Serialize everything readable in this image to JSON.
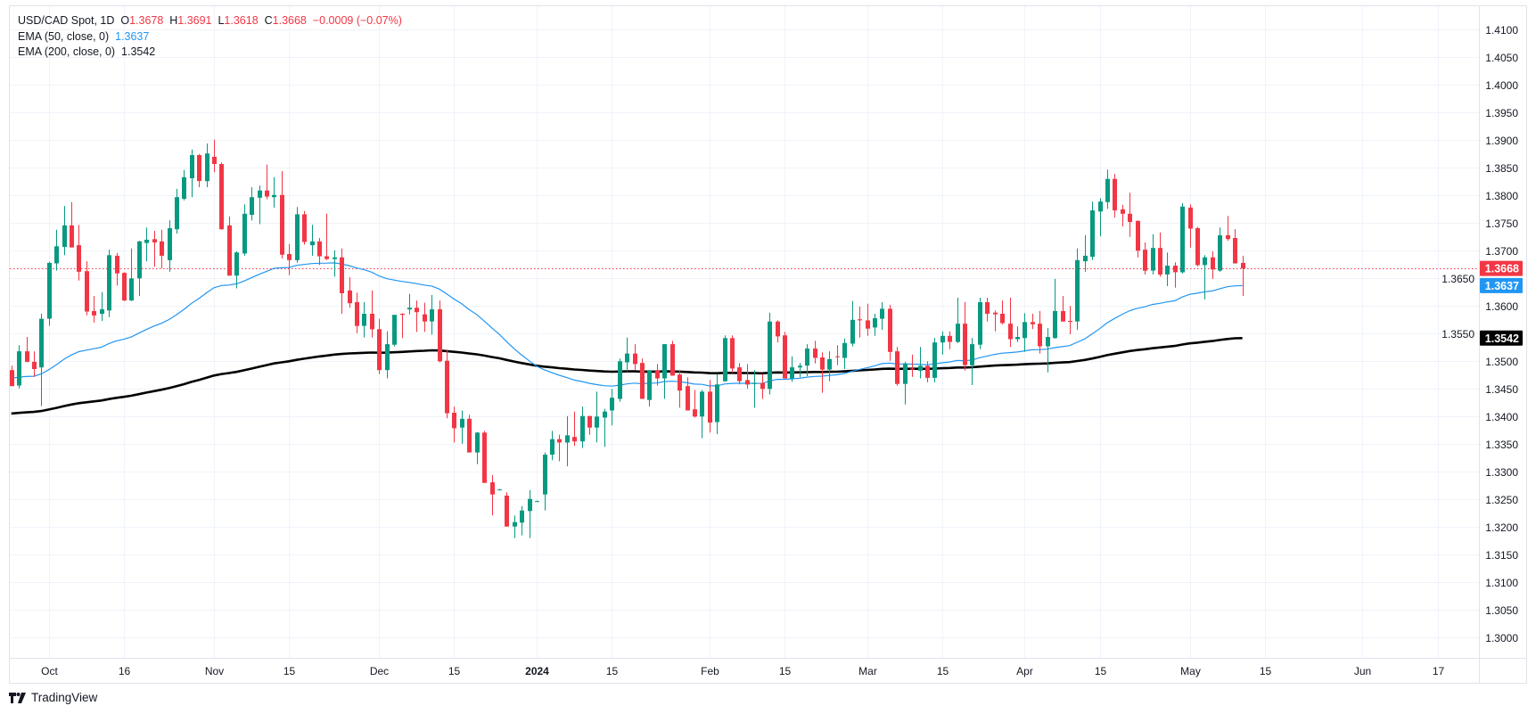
{
  "legend": {
    "symbol": "USD/CAD Spot, 1D",
    "o_label": "O",
    "o_value": "1.3678",
    "h_label": "H",
    "h_value": "1.3691",
    "l_label": "L",
    "l_value": "1.3618",
    "c_label": "C",
    "c_value": "1.3668",
    "change": "−0.0009 (−0.07%)",
    "ema50_label": "EMA (50, close, 0)",
    "ema50_value": "1.3637",
    "ema200_label": "EMA (200, close, 0)",
    "ema200_value": "1.3542"
  },
  "branding": {
    "logo_text": "TradingView"
  },
  "colors": {
    "up": "#089981",
    "down": "#f23645",
    "ema50": "#2196f3",
    "ema200": "#000000",
    "grid": "#f0f3fa"
  },
  "chart_data": {
    "type": "candlestick",
    "title": "USD/CAD Spot, 1D",
    "ylim": [
      1.2975,
      1.4125
    ],
    "y_ticks": [
      "1.3000",
      "1.3050",
      "1.3100",
      "1.3150",
      "1.3200",
      "1.3250",
      "1.3300",
      "1.3350",
      "1.3400",
      "1.3450",
      "1.3500",
      "1.3550",
      "1.3600",
      "1.3650",
      "1.3700",
      "1.3750",
      "1.3800",
      "1.3850",
      "1.3900",
      "1.3950",
      "1.4000",
      "1.4050",
      "1.4100"
    ],
    "x_ticks": [
      {
        "label": "Oct",
        "bar": 5
      },
      {
        "label": "16",
        "bar": 15
      },
      {
        "label": "Nov",
        "bar": 27
      },
      {
        "label": "15",
        "bar": 37
      },
      {
        "label": "Dec",
        "bar": 49
      },
      {
        "label": "15",
        "bar": 59
      },
      {
        "label": "2024",
        "bar": 70,
        "bold": true
      },
      {
        "label": "15",
        "bar": 80
      },
      {
        "label": "Feb",
        "bar": 93
      },
      {
        "label": "15",
        "bar": 103
      },
      {
        "label": "Mar",
        "bar": 114
      },
      {
        "label": "15",
        "bar": 124
      },
      {
        "label": "Apr",
        "bar": 135
      },
      {
        "label": "15",
        "bar": 145
      },
      {
        "label": "May",
        "bar": 157
      },
      {
        "label": "15",
        "bar": 167
      },
      {
        "label": "Jun",
        "bar": 180
      },
      {
        "label": "17",
        "bar": 190
      }
    ],
    "last_price": {
      "value": 1.3668,
      "label": "1.3668"
    },
    "ema50": {
      "start": 1.347,
      "last": 1.3637,
      "label": "1.3637"
    },
    "ema200": {
      "start": 1.3405,
      "last": 1.3542,
      "label": "1.3542"
    },
    "ohlc_fields": [
      "open",
      "high",
      "low",
      "close"
    ],
    "candles": [
      [
        1.3484,
        1.3492,
        1.3455,
        1.3455
      ],
      [
        1.3456,
        1.3529,
        1.3451,
        1.3518
      ],
      [
        1.3518,
        1.3544,
        1.3498,
        1.3499
      ],
      [
        1.3499,
        1.3518,
        1.3472,
        1.3486
      ],
      [
        1.3489,
        1.3586,
        1.3419,
        1.3577
      ],
      [
        1.3577,
        1.368,
        1.3564,
        1.3678
      ],
      [
        1.3677,
        1.3738,
        1.3664,
        1.3708
      ],
      [
        1.3707,
        1.3781,
        1.3692,
        1.3746
      ],
      [
        1.3746,
        1.3788,
        1.3706,
        1.3706
      ],
      [
        1.371,
        1.3747,
        1.3646,
        1.3662
      ],
      [
        1.3663,
        1.3681,
        1.3583,
        1.359
      ],
      [
        1.3591,
        1.3618,
        1.357,
        1.3583
      ],
      [
        1.3586,
        1.3625,
        1.3573,
        1.3594
      ],
      [
        1.3592,
        1.3702,
        1.358,
        1.3692
      ],
      [
        1.3691,
        1.3696,
        1.3637,
        1.3659
      ],
      [
        1.366,
        1.3661,
        1.3609,
        1.361
      ],
      [
        1.361,
        1.3704,
        1.3609,
        1.365
      ],
      [
        1.365,
        1.3718,
        1.3618,
        1.3717
      ],
      [
        1.3714,
        1.3742,
        1.3681,
        1.372
      ],
      [
        1.3721,
        1.3736,
        1.3671,
        1.3715
      ],
      [
        1.3717,
        1.3738,
        1.3668,
        1.3691
      ],
      [
        1.3683,
        1.3755,
        1.3662,
        1.3741
      ],
      [
        1.3739,
        1.3812,
        1.3731,
        1.3797
      ],
      [
        1.3794,
        1.3846,
        1.3791,
        1.3833
      ],
      [
        1.3831,
        1.3883,
        1.3797,
        1.3873
      ],
      [
        1.3873,
        1.3875,
        1.3815,
        1.3826
      ],
      [
        1.3826,
        1.3894,
        1.3815,
        1.3876
      ],
      [
        1.387,
        1.3901,
        1.3842,
        1.3857
      ],
      [
        1.3857,
        1.386,
        1.3738,
        1.3739
      ],
      [
        1.3746,
        1.3762,
        1.3655,
        1.3655
      ],
      [
        1.3655,
        1.3699,
        1.3632,
        1.3697
      ],
      [
        1.3695,
        1.3784,
        1.3691,
        1.3767
      ],
      [
        1.3765,
        1.3815,
        1.3755,
        1.3797
      ],
      [
        1.3796,
        1.3818,
        1.3748,
        1.3809
      ],
      [
        1.3809,
        1.3856,
        1.3793,
        1.3798
      ],
      [
        1.3797,
        1.3833,
        1.3778,
        1.3801
      ],
      [
        1.3801,
        1.3844,
        1.3686,
        1.3693
      ],
      [
        1.3694,
        1.3712,
        1.3656,
        1.3683
      ],
      [
        1.3683,
        1.3779,
        1.3678,
        1.3766
      ],
      [
        1.3766,
        1.3772,
        1.3711,
        1.3716
      ],
      [
        1.371,
        1.3747,
        1.3691,
        1.3717
      ],
      [
        1.3717,
        1.3723,
        1.3674,
        1.369
      ],
      [
        1.369,
        1.3767,
        1.3683,
        1.3685
      ],
      [
        1.3685,
        1.3701,
        1.3653,
        1.3688
      ],
      [
        1.3688,
        1.3704,
        1.3586,
        1.3623
      ],
      [
        1.3628,
        1.3652,
        1.3597,
        1.3605
      ],
      [
        1.3607,
        1.3624,
        1.3551,
        1.3564
      ],
      [
        1.3564,
        1.3607,
        1.3543,
        1.3586
      ],
      [
        1.3586,
        1.3628,
        1.3543,
        1.3558
      ],
      [
        1.3558,
        1.3577,
        1.3477,
        1.3484
      ],
      [
        1.3484,
        1.3554,
        1.3469,
        1.3531
      ],
      [
        1.353,
        1.3584,
        1.3527,
        1.3584
      ],
      [
        1.3586,
        1.3587,
        1.3542,
        1.3584
      ],
      [
        1.3594,
        1.3622,
        1.3585,
        1.3597
      ],
      [
        1.3597,
        1.361,
        1.3553,
        1.3589
      ],
      [
        1.3585,
        1.3606,
        1.3553,
        1.3572
      ],
      [
        1.3572,
        1.362,
        1.3548,
        1.3594
      ],
      [
        1.3594,
        1.361,
        1.3498,
        1.35
      ],
      [
        1.3501,
        1.3521,
        1.3397,
        1.3406
      ],
      [
        1.3407,
        1.3418,
        1.3353,
        1.3379
      ],
      [
        1.338,
        1.3411,
        1.3351,
        1.3396
      ],
      [
        1.3396,
        1.3403,
        1.3335,
        1.3335
      ],
      [
        1.3335,
        1.3372,
        1.3314,
        1.3371
      ],
      [
        1.3371,
        1.3374,
        1.328,
        1.328
      ],
      [
        1.3281,
        1.3294,
        1.3221,
        1.3259
      ],
      [
        1.3268,
        1.3269,
        1.3267,
        1.3268
      ],
      [
        1.3257,
        1.3263,
        1.3201,
        1.3201
      ],
      [
        1.3201,
        1.3221,
        1.318,
        1.3209
      ],
      [
        1.3208,
        1.3238,
        1.3185,
        1.323
      ],
      [
        1.3229,
        1.3267,
        1.318,
        1.3251
      ],
      [
        1.3247,
        1.3248,
        1.3246,
        1.3247
      ],
      [
        1.3259,
        1.3335,
        1.323,
        1.3331
      ],
      [
        1.3331,
        1.3374,
        1.3321,
        1.3359
      ],
      [
        1.3359,
        1.3367,
        1.3319,
        1.3353
      ],
      [
        1.3353,
        1.3401,
        1.331,
        1.3366
      ],
      [
        1.3363,
        1.3409,
        1.3347,
        1.3355
      ],
      [
        1.3355,
        1.3418,
        1.3343,
        1.3401
      ],
      [
        1.3401,
        1.3401,
        1.3367,
        1.338
      ],
      [
        1.338,
        1.3445,
        1.3353,
        1.34
      ],
      [
        1.3398,
        1.3414,
        1.3345,
        1.3409
      ],
      [
        1.3411,
        1.345,
        1.3384,
        1.3434
      ],
      [
        1.3432,
        1.3505,
        1.3427,
        1.35
      ],
      [
        1.3498,
        1.3543,
        1.3482,
        1.3514
      ],
      [
        1.3514,
        1.3531,
        1.3484,
        1.3495
      ],
      [
        1.3497,
        1.3505,
        1.3432,
        1.3432
      ],
      [
        1.343,
        1.3484,
        1.3418,
        1.3484
      ],
      [
        1.3484,
        1.3495,
        1.3456,
        1.3469
      ],
      [
        1.3469,
        1.3531,
        1.3432,
        1.3531
      ],
      [
        1.3531,
        1.3537,
        1.3474,
        1.3474
      ],
      [
        1.3476,
        1.3484,
        1.3416,
        1.3447
      ],
      [
        1.3455,
        1.3471,
        1.3411,
        1.3411
      ],
      [
        1.3413,
        1.3448,
        1.3398,
        1.34
      ],
      [
        1.34,
        1.3448,
        1.3361,
        1.3445
      ],
      [
        1.3445,
        1.3466,
        1.3371,
        1.3389
      ],
      [
        1.339,
        1.3477,
        1.3368,
        1.3458
      ],
      [
        1.3464,
        1.3547,
        1.3463,
        1.3542
      ],
      [
        1.3542,
        1.3547,
        1.3479,
        1.3487
      ],
      [
        1.3489,
        1.3497,
        1.3458,
        1.3464
      ],
      [
        1.3466,
        1.3495,
        1.345,
        1.3458
      ],
      [
        1.3459,
        1.3484,
        1.3416,
        1.3461
      ],
      [
        1.3461,
        1.3477,
        1.3432,
        1.345
      ],
      [
        1.345,
        1.3588,
        1.344,
        1.3572
      ],
      [
        1.3572,
        1.3574,
        1.3534,
        1.3545
      ],
      [
        1.3547,
        1.3553,
        1.3469,
        1.3469
      ],
      [
        1.3469,
        1.3509,
        1.3463,
        1.3489
      ],
      [
        1.3489,
        1.3497,
        1.3471,
        1.3492
      ],
      [
        1.3492,
        1.3531,
        1.3473,
        1.3523
      ],
      [
        1.3523,
        1.3537,
        1.3496,
        1.3506
      ],
      [
        1.3507,
        1.3516,
        1.3443,
        1.3485
      ],
      [
        1.3485,
        1.3518,
        1.3464,
        1.3504
      ],
      [
        1.3509,
        1.3529,
        1.3493,
        1.3508
      ],
      [
        1.3506,
        1.3541,
        1.3486,
        1.3533
      ],
      [
        1.3532,
        1.3609,
        1.3527,
        1.3575
      ],
      [
        1.3576,
        1.3599,
        1.3543,
        1.3574
      ],
      [
        1.3574,
        1.3604,
        1.3546,
        1.3559
      ],
      [
        1.3561,
        1.3586,
        1.3546,
        1.3578
      ],
      [
        1.3577,
        1.3607,
        1.3557,
        1.3595
      ],
      [
        1.3595,
        1.3602,
        1.3501,
        1.3517
      ],
      [
        1.3518,
        1.3526,
        1.3456,
        1.3459
      ],
      [
        1.3459,
        1.3499,
        1.3422,
        1.3496
      ],
      [
        1.3487,
        1.3512,
        1.3472,
        1.3485
      ],
      [
        1.3483,
        1.3526,
        1.3469,
        1.3492
      ],
      [
        1.3492,
        1.35,
        1.3462,
        1.347
      ],
      [
        1.347,
        1.3542,
        1.3462,
        1.3534
      ],
      [
        1.3534,
        1.3554,
        1.3512,
        1.3546
      ],
      [
        1.3546,
        1.3554,
        1.3522,
        1.3535
      ],
      [
        1.3535,
        1.3615,
        1.3533,
        1.3568
      ],
      [
        1.3568,
        1.3607,
        1.3483,
        1.3493
      ],
      [
        1.3493,
        1.3542,
        1.3457,
        1.3531
      ],
      [
        1.353,
        1.3615,
        1.3522,
        1.3607
      ],
      [
        1.3607,
        1.3615,
        1.3572,
        1.3586
      ],
      [
        1.3588,
        1.3592,
        1.3554,
        1.3585
      ],
      [
        1.3586,
        1.361,
        1.3567,
        1.3569
      ],
      [
        1.3568,
        1.3615,
        1.3526,
        1.354
      ],
      [
        1.354,
        1.3563,
        1.3535,
        1.3544
      ],
      [
        1.3542,
        1.3587,
        1.3517,
        1.3571
      ],
      [
        1.3571,
        1.3586,
        1.3558,
        1.3567
      ],
      [
        1.3568,
        1.3591,
        1.3514,
        1.3527
      ],
      [
        1.3527,
        1.356,
        1.348,
        1.3544
      ],
      [
        1.3542,
        1.3649,
        1.3541,
        1.3591
      ],
      [
        1.3591,
        1.3618,
        1.3572,
        1.3572
      ],
      [
        1.3573,
        1.36,
        1.3549,
        1.3572
      ],
      [
        1.3572,
        1.3704,
        1.3557,
        1.3683
      ],
      [
        1.3681,
        1.3728,
        1.3662,
        1.3691
      ],
      [
        1.3689,
        1.3789,
        1.3683,
        1.3773
      ],
      [
        1.3771,
        1.3795,
        1.3726,
        1.3789
      ],
      [
        1.3788,
        1.3847,
        1.3776,
        1.383
      ],
      [
        1.383,
        1.3839,
        1.376,
        1.3773
      ],
      [
        1.3775,
        1.3783,
        1.3744,
        1.3767
      ],
      [
        1.3767,
        1.3805,
        1.3725,
        1.3752
      ],
      [
        1.3754,
        1.3755,
        1.3688,
        1.37
      ],
      [
        1.3702,
        1.3715,
        1.3657,
        1.3664
      ],
      [
        1.3664,
        1.373,
        1.3657,
        1.3705
      ],
      [
        1.3705,
        1.3733,
        1.3653,
        1.3657
      ],
      [
        1.3657,
        1.3697,
        1.3636,
        1.3673
      ],
      [
        1.3673,
        1.3679,
        1.3633,
        1.3661
      ],
      [
        1.3661,
        1.3786,
        1.3659,
        1.378
      ],
      [
        1.3778,
        1.3784,
        1.3706,
        1.374
      ],
      [
        1.3741,
        1.3743,
        1.3672,
        1.3674
      ],
      [
        1.3674,
        1.3692,
        1.3612,
        1.3688
      ],
      [
        1.3688,
        1.3699,
        1.3649,
        1.3666
      ],
      [
        1.3664,
        1.3742,
        1.3662,
        1.3728
      ],
      [
        1.3728,
        1.3763,
        1.3718,
        1.3721
      ],
      [
        1.3723,
        1.3739,
        1.3677,
        1.3677
      ],
      [
        1.3678,
        1.3691,
        1.3618,
        1.3668
      ]
    ]
  }
}
